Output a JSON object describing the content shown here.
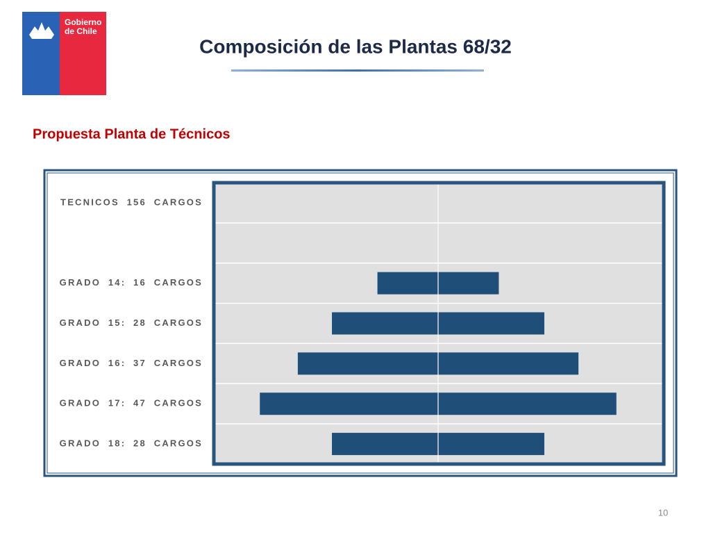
{
  "logo_text": [
    "Gobierno",
    "de Chile"
  ],
  "chart_data": {
    "type": "bar",
    "title": "Composición de las Plantas 68/32",
    "subtitle": "Propuesta Planta de Técnicos",
    "categories": [
      "TECNICOS 156 CARGOS",
      null,
      "GRADO 14: 16 CARGOS",
      "GRADO 15: 28 CARGOS",
      "GRADO 16: 37 CARGOS",
      "GRADO 17: 47 CARGOS",
      "GRADO 18: 28 CARGOS"
    ],
    "values": [
      null,
      null,
      16,
      28,
      37,
      47,
      28
    ],
    "color": "#1f4e79"
  },
  "page_number": "10"
}
